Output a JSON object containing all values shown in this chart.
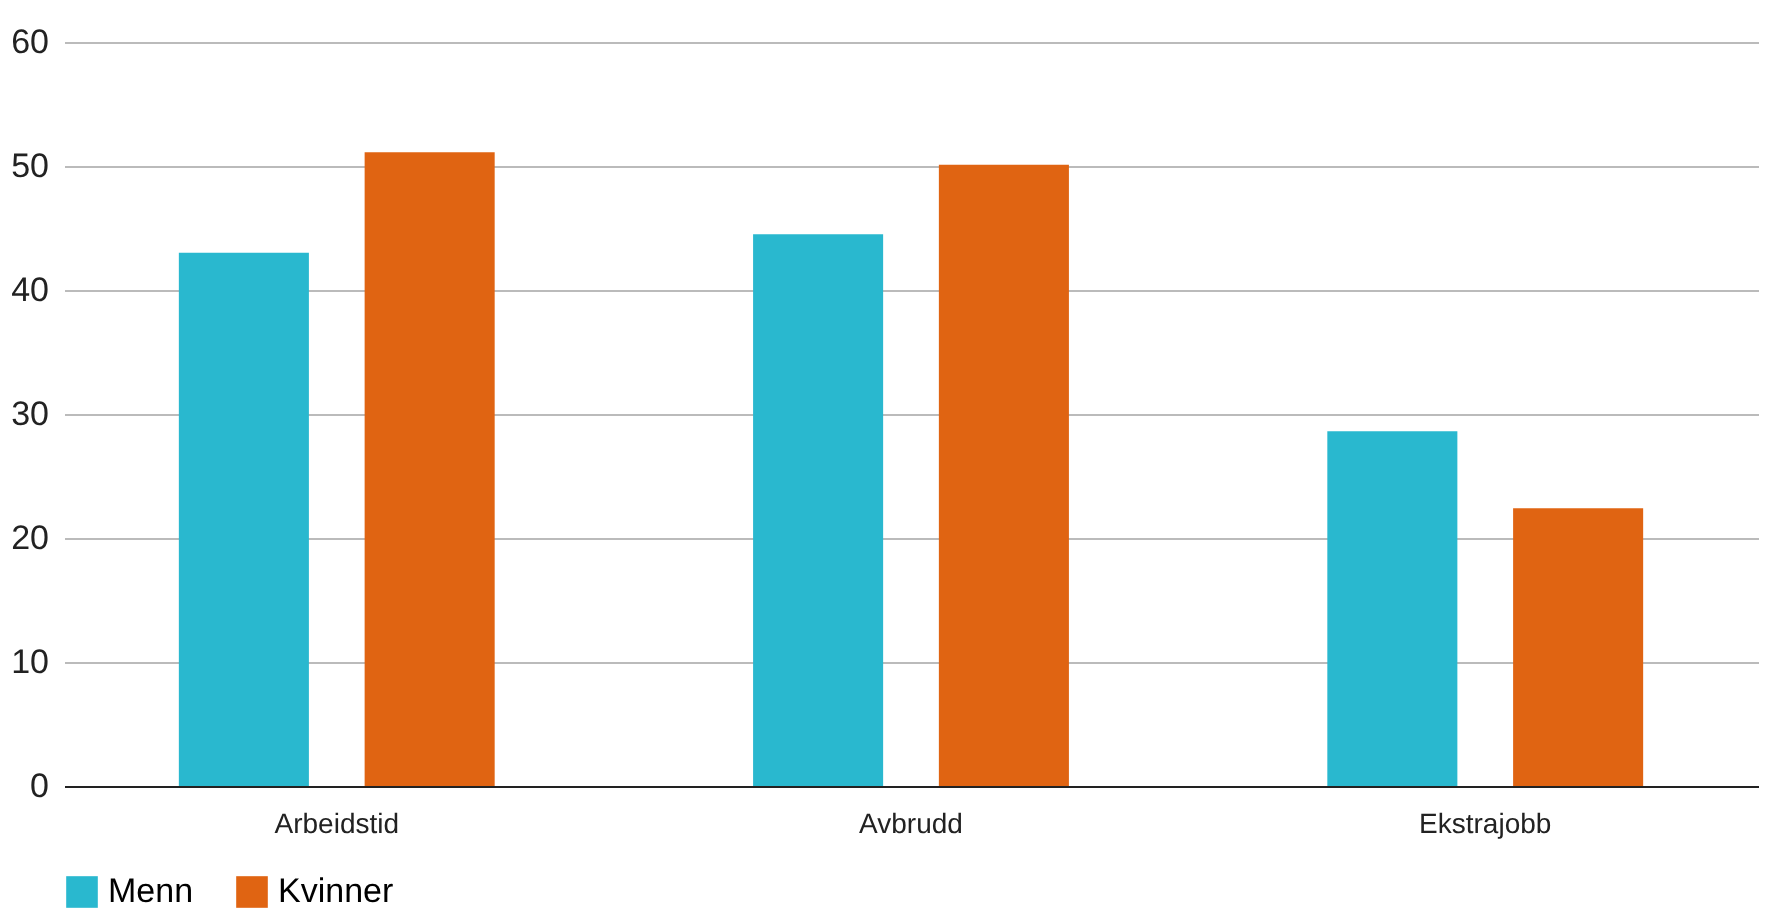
{
  "chart_data": {
    "type": "bar",
    "categories": [
      "Arbeidstid",
      "Avbrudd",
      "Ekstrajobb"
    ],
    "series": [
      {
        "name": "Menn",
        "color": "#29b8cf",
        "values": [
          43.0,
          44.5,
          28.6
        ]
      },
      {
        "name": "Kvinner",
        "color": "#e06412",
        "values": [
          51.1,
          50.1,
          22.4
        ]
      }
    ],
    "ylim": [
      0,
      60
    ],
    "yticks": [
      0,
      10,
      20,
      30,
      40,
      50,
      60
    ],
    "grid": "y",
    "legend": "bottom"
  }
}
